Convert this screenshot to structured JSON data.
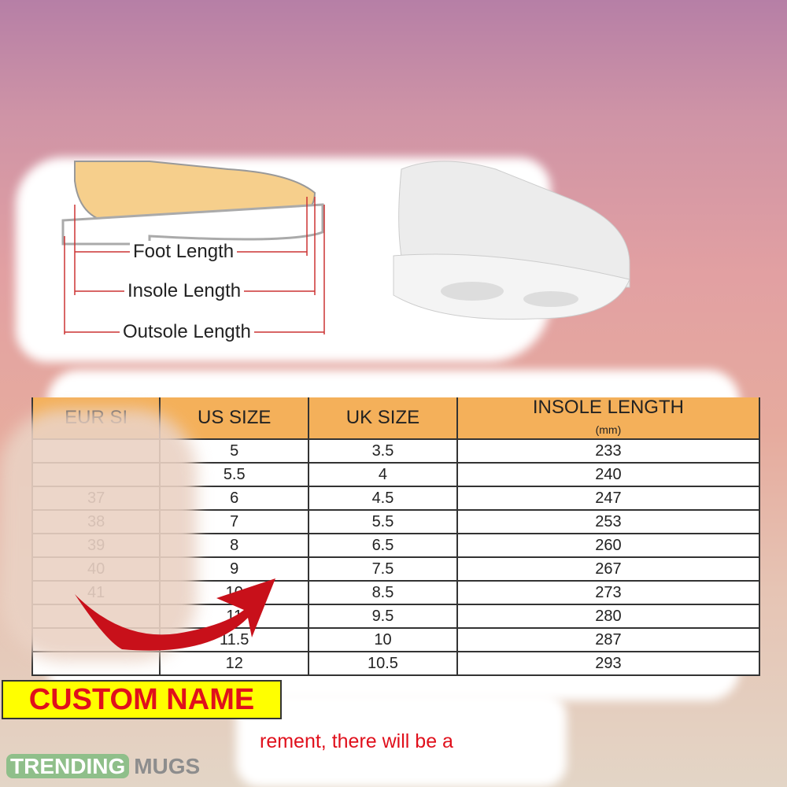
{
  "diagram": {
    "labels": [
      "Foot Length",
      "Insole Length",
      "Outsole Length"
    ]
  },
  "table": {
    "headers": [
      "EUR SI",
      "US SIZE",
      "UK SIZE",
      "INSOLE LENGTH"
    ],
    "header_unit": "(mm)",
    "rows": [
      [
        "",
        "5",
        "3.5",
        "233"
      ],
      [
        "",
        "5.5",
        "4",
        "240"
      ],
      [
        "37",
        "6",
        "4.5",
        "247"
      ],
      [
        "38",
        "7",
        "5.5",
        "253"
      ],
      [
        "39",
        "8",
        "6.5",
        "260"
      ],
      [
        "40",
        "9",
        "7.5",
        "267"
      ],
      [
        "41",
        "10",
        "8.5",
        "273"
      ],
      [
        "",
        "11",
        "9.5",
        "280"
      ],
      [
        "",
        "11.5",
        "10",
        "287"
      ],
      [
        "",
        "12",
        "10.5",
        "293"
      ]
    ]
  },
  "custom_name": "CUSTOM NAME",
  "note": "rement, there will be a",
  "logo": {
    "part1": "TRENDING",
    "part2": "MUGS"
  },
  "colors": {
    "header": "#f4b05a",
    "accent_red": "#e0101c",
    "highlight": "#ffff00"
  }
}
